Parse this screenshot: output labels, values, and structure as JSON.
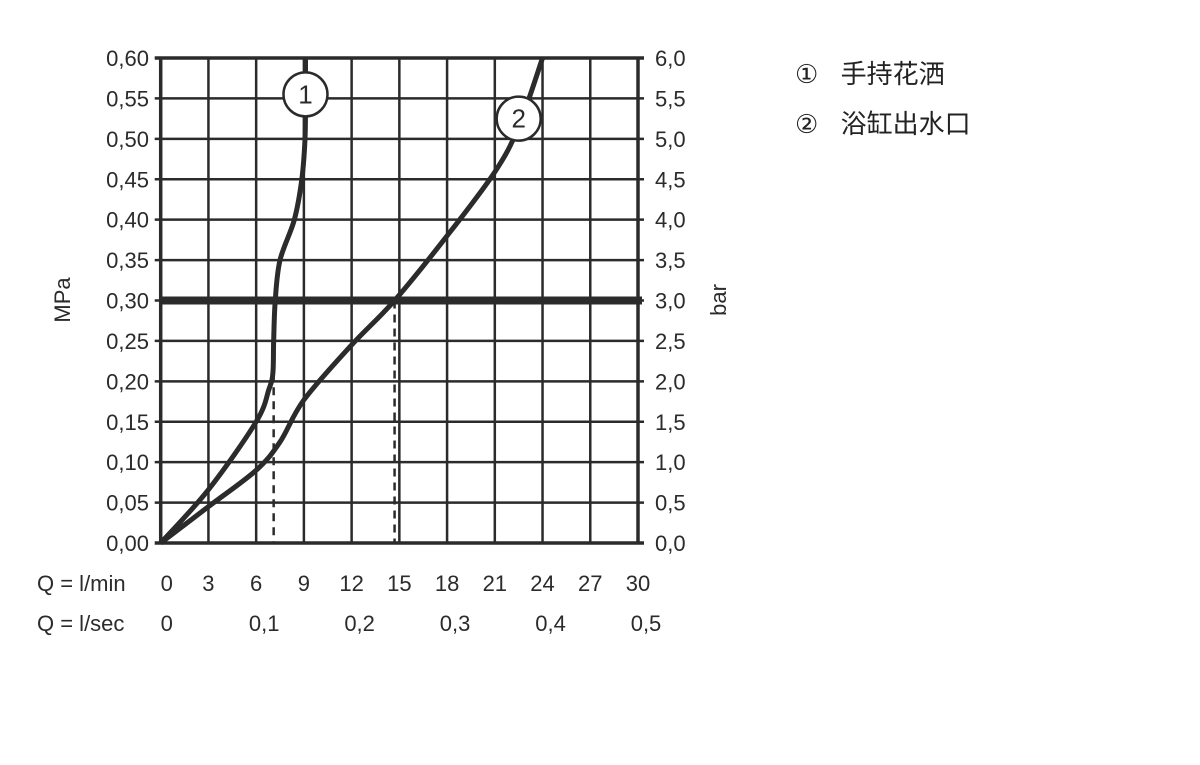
{
  "chart_data": {
    "type": "line",
    "ylabel_left": "MPa",
    "ylabel_right": "bar",
    "x_row_labels": [
      "Q = l/min",
      "Q = l/sec"
    ],
    "xlim": [
      0,
      30
    ],
    "ylim": [
      0,
      0.6
    ],
    "x_ticks": [
      "0",
      "3",
      "6",
      "9",
      "12",
      "15",
      "18",
      "21",
      "24",
      "27",
      "30"
    ],
    "x_ticks_values": [
      0,
      3,
      6,
      9,
      12,
      15,
      18,
      21,
      24,
      27,
      30
    ],
    "x2_ticks": [
      "0",
      "0,1",
      "0,2",
      "0,3",
      "0,4",
      "0,5"
    ],
    "x2_ticks_values": [
      0,
      6,
      12,
      18,
      24,
      30
    ],
    "y_ticks_left": [
      "0,00",
      "0,05",
      "0,10",
      "0,15",
      "0,20",
      "0,25",
      "0,30",
      "0,35",
      "0,40",
      "0,45",
      "0,50",
      "0,55",
      "0,60"
    ],
    "y_ticks_right": [
      "0,0",
      "0,5",
      "1,0",
      "1,5",
      "2,0",
      "2,5",
      "3,0",
      "3,5",
      "4,0",
      "4,5",
      "5,0",
      "5,5",
      "6,0"
    ],
    "y_tick_values": [
      0,
      0.05,
      0.1,
      0.15,
      0.2,
      0.25,
      0.3,
      0.35,
      0.4,
      0.45,
      0.5,
      0.55,
      0.6
    ],
    "grid": true,
    "reference_line": {
      "y": 0.3
    },
    "dashed_markers": [
      {
        "x": 7.1,
        "y": 0.21
      },
      {
        "x": 14.7,
        "y": 0.3
      }
    ],
    "series": [
      {
        "name": "1",
        "x": [
          0,
          3,
          6,
          6.8,
          7.05,
          7.1,
          7.2,
          7.5,
          8.4,
          8.87,
          9.07,
          9.1,
          9.1
        ],
        "y": [
          0,
          0.066,
          0.15,
          0.19,
          0.21,
          0.25,
          0.3,
          0.35,
          0.4,
          0.45,
          0.5,
          0.55,
          0.6
        ]
      },
      {
        "name": "2",
        "x": [
          0,
          3,
          6,
          7.5,
          9,
          12,
          14.7,
          18,
          21,
          22.5,
          24
        ],
        "y": [
          0,
          0.045,
          0.09,
          0.125,
          0.177,
          0.245,
          0.3,
          0.38,
          0.459,
          0.515,
          0.6
        ]
      }
    ],
    "series_label_positions": [
      {
        "name": "1",
        "x": 9.1,
        "y": 0.555
      },
      {
        "name": "2",
        "x": 22.5,
        "y": 0.525
      }
    ]
  },
  "legend": [
    {
      "marker": "①",
      "label": "手持花洒"
    },
    {
      "marker": "②",
      "label": "浴缸出水口"
    }
  ],
  "colors": {
    "ink": "#2b2b2b"
  }
}
